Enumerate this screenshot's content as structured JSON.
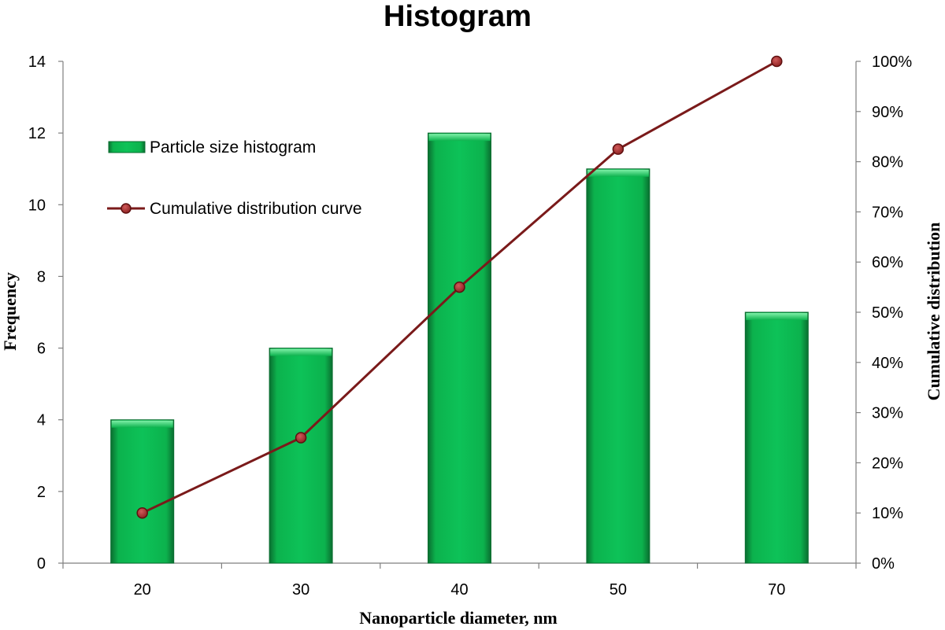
{
  "chart_data": {
    "type": "bar",
    "title": "Histogram",
    "xlabel": "Nanoparticle diameter, nm",
    "ylabel": "Frequency",
    "y2label": "Cumulative distribution",
    "categories": [
      "20",
      "30",
      "40",
      "50",
      "70"
    ],
    "ylim": [
      0,
      14
    ],
    "y_ticks": [
      "0",
      "2",
      "4",
      "6",
      "8",
      "10",
      "12",
      "14"
    ],
    "y2lim": [
      0,
      1
    ],
    "y2_ticks": [
      "0%",
      "10%",
      "20%",
      "30%",
      "40%",
      "50%",
      "60%",
      "70%",
      "80%",
      "90%",
      "100%"
    ],
    "legend_position": "top-left",
    "series": [
      {
        "name": "Particle size histogram",
        "type": "bar",
        "axis": "left",
        "color": "#0db84f",
        "values": [
          4,
          6,
          12,
          11,
          7
        ]
      },
      {
        "name": "Cumulative distribution curve",
        "type": "line",
        "axis": "right",
        "color": "#7a1a1a",
        "marker_color": "#a52a2a",
        "values": [
          0.1,
          0.25,
          0.55,
          0.825,
          1.0
        ]
      }
    ]
  }
}
